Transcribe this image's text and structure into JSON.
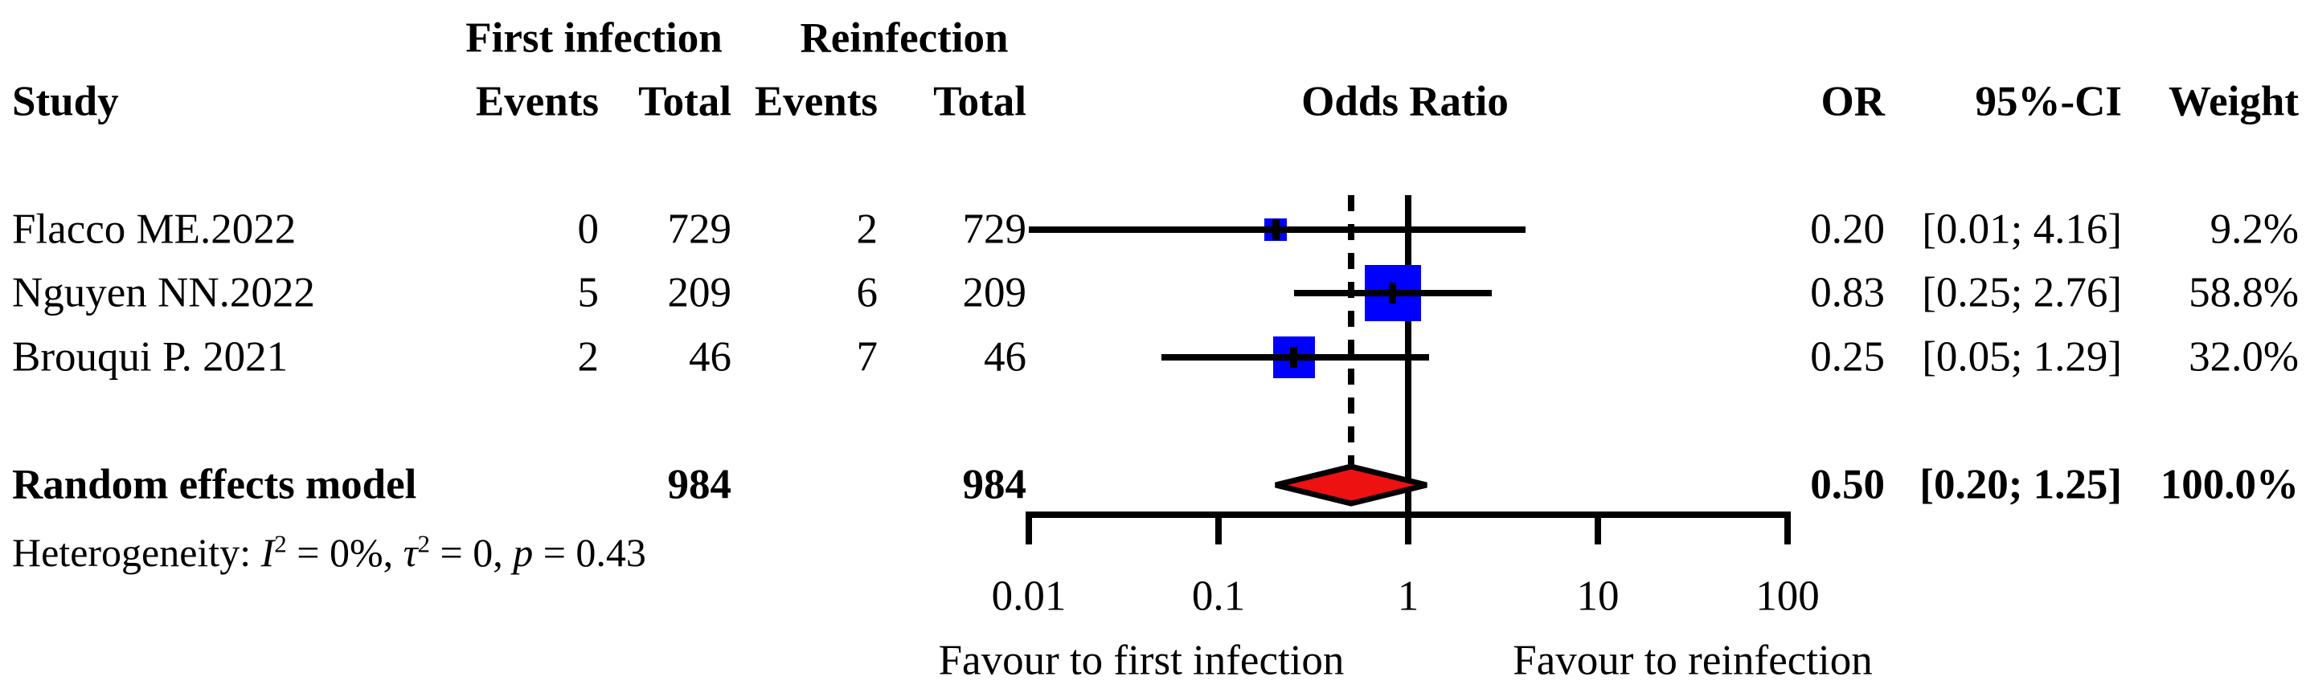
{
  "title_columns": {
    "group_first": "First infection",
    "group_re": "Reinfection",
    "study": "Study",
    "events": "Events",
    "total": "Total",
    "odds_ratio": "Odds Ratio",
    "or": "OR",
    "ci": "95%-CI",
    "weight": "Weight"
  },
  "rows": [
    {
      "study": "Flacco ME.2022",
      "e1": "0",
      "t1": "729",
      "e2": "2",
      "t2": "729",
      "or": "0.20",
      "ci": "[0.01; 4.16]",
      "weight": "9.2%"
    },
    {
      "study": "Nguyen NN.2022",
      "e1": "5",
      "t1": "209",
      "e2": "6",
      "t2": "209",
      "or": "0.83",
      "ci": "[0.25; 2.76]",
      "weight": "58.8%"
    },
    {
      "study": "Brouqui P. 2021",
      "e1": "2",
      "t1": "46",
      "e2": "7",
      "t2": "46",
      "or": "0.25",
      "ci": "[0.05; 1.29]",
      "weight": "32.0%"
    }
  ],
  "summary": {
    "label": "Random effects model",
    "t1": "984",
    "t2": "984",
    "or": "0.50",
    "ci": "[0.20; 1.25]",
    "weight": "100.0%"
  },
  "heterogeneity": {
    "prefix": "Heterogeneity: ",
    "i": "I",
    "i_sup": "2",
    "i_eq": " = 0%, ",
    "tau": "τ",
    "tau_sup": "2",
    "tau_eq": " = 0, ",
    "p": "p",
    "p_eq": " = 0.43"
  },
  "axis": {
    "tick_labels": [
      "0.01",
      "0.1",
      "1",
      "10",
      "100"
    ],
    "label_left": "Favour to first infection",
    "label_right": "Favour to reinfection"
  },
  "colors": {
    "square": "#0000FE",
    "diamond_fill": "#EE1111",
    "line": "#000000"
  },
  "chart_data": {
    "type": "scatter",
    "subtype": "forest_plot_meta_analysis",
    "x_scale": "log",
    "x_range": [
      0.01,
      100
    ],
    "x_ticks": [
      0.01,
      0.1,
      1,
      10,
      100
    ],
    "reference_or": 1,
    "studies": [
      {
        "name": "Flacco ME.2022",
        "first_infection_events": 0,
        "first_infection_total": 729,
        "reinfection_events": 2,
        "reinfection_total": 729,
        "or": 0.2,
        "ci_low": 0.01,
        "ci_high": 4.16,
        "weight_pct": 9.2
      },
      {
        "name": "Nguyen NN.2022",
        "first_infection_events": 5,
        "first_infection_total": 209,
        "reinfection_events": 6,
        "reinfection_total": 209,
        "or": 0.83,
        "ci_low": 0.25,
        "ci_high": 2.76,
        "weight_pct": 58.8
      },
      {
        "name": "Brouqui P. 2021",
        "first_infection_events": 2,
        "first_infection_total": 46,
        "reinfection_events": 7,
        "reinfection_total": 46,
        "or": 0.25,
        "ci_low": 0.05,
        "ci_high": 1.29,
        "weight_pct": 32.0
      }
    ],
    "summary": {
      "model": "Random effects model",
      "first_infection_total": 984,
      "reinfection_total": 984,
      "or": 0.5,
      "ci_low": 0.2,
      "ci_high": 1.25,
      "weight_pct": 100.0
    },
    "heterogeneity": {
      "I2": "0%",
      "tau2": 0,
      "p": 0.43
    },
    "xlabel_left": "Favour to first infection",
    "xlabel_right": "Favour to reinfection"
  }
}
